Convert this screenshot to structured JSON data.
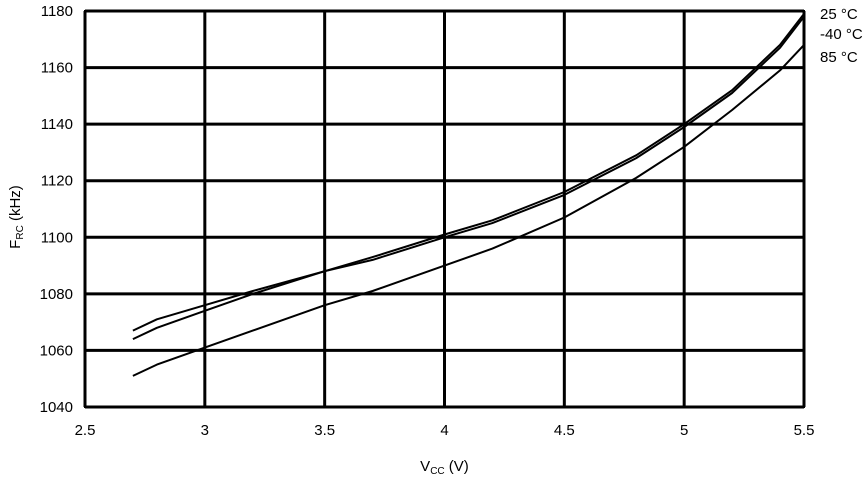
{
  "chart_data": {
    "type": "line",
    "xlabel": {
      "main": "V",
      "sub": "CC",
      "unit": " (V)"
    },
    "ylabel": {
      "main": "F",
      "sub": "RC",
      "unit": " (kHz)"
    },
    "xlim": [
      2.5,
      5.5
    ],
    "ylim": [
      1040,
      1180
    ],
    "xticks": [
      "2.5",
      "3",
      "3.5",
      "4",
      "4.5",
      "5",
      "5.5"
    ],
    "yticks": [
      "1040",
      "1060",
      "1080",
      "1100",
      "1120",
      "1140",
      "1160",
      "1180"
    ],
    "grid": true,
    "legend_placement": "right, at line ends",
    "line_color": "#000000",
    "series": [
      {
        "name": "25 °C",
        "x": [
          2.7,
          2.8,
          3.0,
          3.2,
          3.5,
          3.7,
          4.0,
          4.2,
          4.5,
          4.8,
          5.0,
          5.2,
          5.4,
          5.5
        ],
        "y": [
          1064,
          1068,
          1074,
          1080,
          1088,
          1093,
          1101,
          1106,
          1116,
          1129,
          1140,
          1152,
          1168,
          1179
        ]
      },
      {
        "name": "-40 °C",
        "x": [
          2.7,
          2.8,
          3.0,
          3.2,
          3.5,
          3.7,
          4.0,
          4.2,
          4.5,
          4.8,
          5.0,
          5.2,
          5.4,
          5.5
        ],
        "y": [
          1067,
          1071,
          1076,
          1081,
          1088,
          1092,
          1100,
          1105,
          1115,
          1128,
          1139,
          1151,
          1167,
          1178
        ]
      },
      {
        "name": "85 °C",
        "x": [
          2.7,
          2.8,
          3.0,
          3.2,
          3.5,
          3.7,
          4.0,
          4.2,
          4.5,
          4.8,
          5.0,
          5.2,
          5.4,
          5.5
        ],
        "y": [
          1051,
          1055,
          1061,
          1067,
          1076,
          1081,
          1090,
          1096,
          1107,
          1121,
          1132,
          1145,
          1159,
          1168
        ]
      }
    ]
  }
}
